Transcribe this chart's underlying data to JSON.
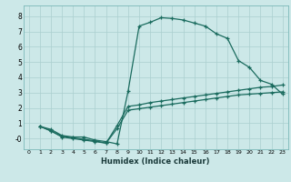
{
  "xlabel": "Humidex (Indice chaleur)",
  "bg_color": "#cce8e8",
  "grid_color": "#aacfcf",
  "line_color": "#1a6b5e",
  "xlim": [
    -0.5,
    23.5
  ],
  "ylim": [
    -0.7,
    8.7
  ],
  "xticks": [
    0,
    1,
    2,
    3,
    4,
    5,
    6,
    7,
    8,
    9,
    10,
    11,
    12,
    13,
    14,
    15,
    16,
    17,
    18,
    19,
    20,
    21,
    22,
    23
  ],
  "yticks": [
    0,
    1,
    2,
    3,
    4,
    5,
    6,
    7,
    8
  ],
  "ytick_labels": [
    "-0",
    "1",
    "2",
    "3",
    "4",
    "5",
    "6",
    "7",
    "8"
  ],
  "series1_x": [
    1,
    2,
    3,
    4,
    5,
    6,
    7,
    8,
    9,
    10,
    11,
    12,
    13,
    14,
    15,
    16,
    17,
    18,
    19,
    20,
    21,
    22,
    23
  ],
  "series1_y": [
    0.8,
    0.6,
    0.2,
    0.1,
    0.1,
    -0.1,
    -0.2,
    -0.35,
    3.1,
    7.35,
    7.6,
    7.9,
    7.85,
    7.75,
    7.55,
    7.35,
    6.85,
    6.55,
    5.1,
    4.65,
    3.8,
    3.55,
    2.9
  ],
  "series2_x": [
    1,
    2,
    3,
    4,
    5,
    6,
    7,
    8,
    9,
    10,
    11,
    12,
    13,
    14,
    15,
    16,
    17,
    18,
    19,
    20,
    21,
    22,
    23
  ],
  "series2_y": [
    0.8,
    0.5,
    0.1,
    0.0,
    -0.1,
    -0.2,
    -0.3,
    0.85,
    2.1,
    2.2,
    2.35,
    2.45,
    2.55,
    2.65,
    2.75,
    2.85,
    2.95,
    3.05,
    3.15,
    3.25,
    3.35,
    3.4,
    3.5
  ],
  "series3_x": [
    1,
    2,
    3,
    4,
    5,
    6,
    7,
    8,
    9,
    10,
    11,
    12,
    13,
    14,
    15,
    16,
    17,
    18,
    19,
    20,
    21,
    22,
    23
  ],
  "series3_y": [
    0.8,
    0.5,
    0.15,
    0.05,
    -0.05,
    -0.15,
    -0.3,
    0.65,
    1.85,
    1.95,
    2.05,
    2.15,
    2.25,
    2.35,
    2.45,
    2.55,
    2.65,
    2.75,
    2.85,
    2.9,
    2.95,
    3.0,
    3.05
  ]
}
